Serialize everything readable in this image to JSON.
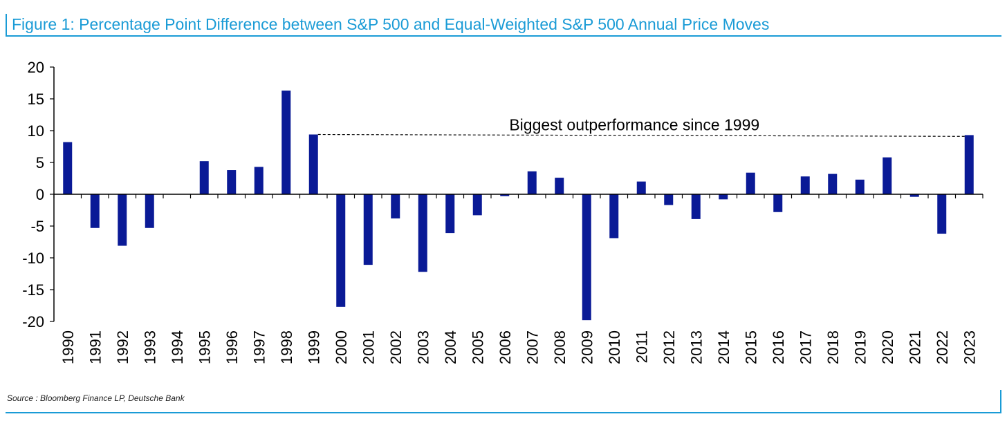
{
  "title": "Figure 1: Percentage Point Difference between S&P 500 and Equal-Weighted S&P 500 Annual Price Moves",
  "source": "Source : Bloomberg Finance LP, Deutsche Bank",
  "colors": {
    "accent": "#1a9bd6",
    "bar": "#0a1a96",
    "text": "#000000"
  },
  "chart_data": {
    "type": "bar",
    "title": "Figure 1: Percentage Point Difference between S&P 500 and Equal-Weighted S&P 500 Annual Price Moves",
    "xlabel": "",
    "ylabel": "",
    "ylim": [
      -20,
      20
    ],
    "yticks": [
      20,
      15,
      10,
      5,
      0,
      -5,
      -10,
      -15,
      -20
    ],
    "grid": false,
    "legend": "none",
    "categories": [
      "1990",
      "1991",
      "1992",
      "1993",
      "1994",
      "1995",
      "1996",
      "1997",
      "1998",
      "1999",
      "2000",
      "2001",
      "2002",
      "2003",
      "2004",
      "2005",
      "2006",
      "2007",
      "2008",
      "2009",
      "2010",
      "2011",
      "2012",
      "2013",
      "2014",
      "2015",
      "2016",
      "2017",
      "2018",
      "2019",
      "2020",
      "2021",
      "2022",
      "2023"
    ],
    "values": [
      8.2,
      -5.3,
      -8.1,
      -5.3,
      0,
      5.2,
      3.8,
      4.3,
      16.3,
      9.4,
      -17.7,
      -11.1,
      -3.8,
      -12.2,
      -6.1,
      -3.3,
      -0.3,
      3.6,
      2.6,
      -19.8,
      -6.9,
      2.0,
      -1.7,
      -3.9,
      -0.8,
      3.4,
      -2.8,
      2.8,
      3.2,
      2.3,
      5.8,
      -0.4,
      -6.2,
      9.3
    ],
    "annotations": [
      {
        "text": "Biggest outperformance since 1999",
        "from": "1999",
        "to": "2023",
        "value": 9.4,
        "style": "dashed"
      }
    ]
  }
}
